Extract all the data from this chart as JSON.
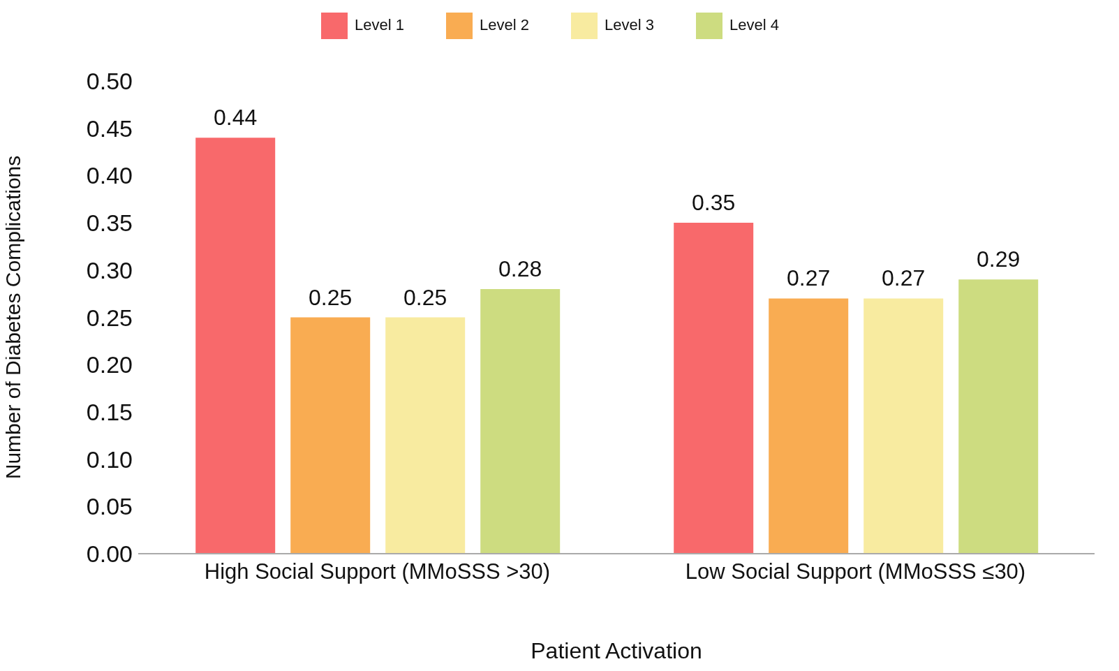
{
  "chart_data": {
    "type": "bar",
    "xlabel": "Patient Activation",
    "ylabel": "Number of Diabetes Complications",
    "categories": [
      "High Social Support (MMoSSS >30)",
      "Low Social Support (MMoSSS ≤30)"
    ],
    "series": [
      {
        "name": "Level 1",
        "color": "#f8696b",
        "values": [
          0.44,
          0.35
        ]
      },
      {
        "name": "Level 2",
        "color": "#f9ac52",
        "values": [
          0.25,
          0.27
        ]
      },
      {
        "name": "Level 3",
        "color": "#f8eba0",
        "values": [
          0.25,
          0.27
        ]
      },
      {
        "name": "Level 4",
        "color": "#cddc80",
        "values": [
          0.28,
          0.29
        ]
      }
    ],
    "ylim": [
      0,
      0.5
    ],
    "yticks": [
      {
        "value": 0,
        "label": "0.00"
      },
      {
        "value": 0.05,
        "label": "0.05"
      },
      {
        "value": 0.1,
        "label": "0.10"
      },
      {
        "value": 0.15,
        "label": "0.15"
      },
      {
        "value": 0.2,
        "label": "0.20"
      },
      {
        "value": 0.25,
        "label": "0.25"
      },
      {
        "value": 0.3,
        "label": "0.30"
      },
      {
        "value": 0.35,
        "label": "0.35"
      },
      {
        "value": 0.4,
        "label": "0.40"
      },
      {
        "value": 0.45,
        "label": "0.45"
      },
      {
        "value": 0.5,
        "label": "0.50"
      }
    ],
    "data_labels": true,
    "legend": "top",
    "grid": false
  }
}
